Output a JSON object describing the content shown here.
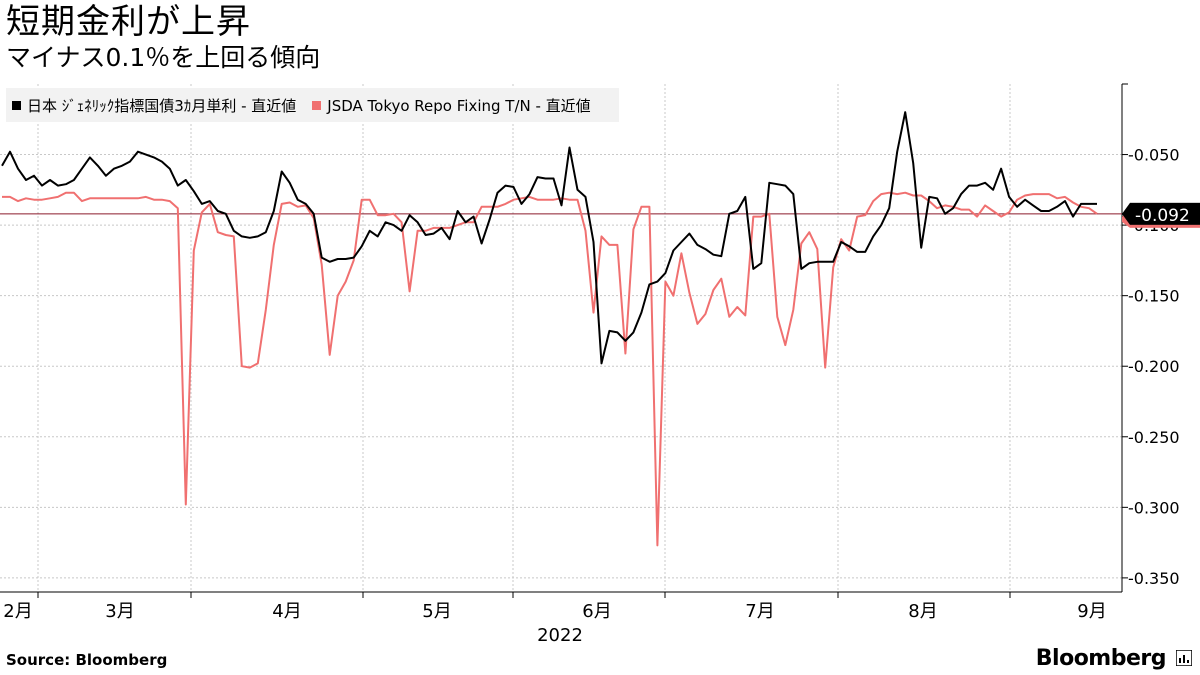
{
  "header": {
    "title": "短期金利が上昇",
    "subtitle": "マイナス0.1％を上回る傾向"
  },
  "footer": {
    "source": "Source:  Bloomberg",
    "logo": "Bloomberg"
  },
  "chart_data": {
    "type": "line",
    "title": "短期金利が上昇",
    "subtitle": "マイナス0.1％を上回る傾向",
    "xlabel": "2022",
    "ylabel": "",
    "ylim": [
      -0.36,
      0.0
    ],
    "y_ticks": [
      -0.05,
      -0.1,
      -0.15,
      -0.2,
      -0.25,
      -0.3,
      -0.35
    ],
    "y_tick_labels": [
      "-0.050",
      "-0.100",
      "-0.150",
      "-0.200",
      "-0.250",
      "-0.300",
      "-0.350"
    ],
    "x_tick_labels": [
      "2月",
      "3月",
      "4月",
      "5月",
      "6月",
      "7月",
      "8月",
      "9月"
    ],
    "x_year_label": "2022",
    "last_value_label": "-0.092",
    "reference_line": -0.092,
    "grid": true,
    "legend_position": "top-left",
    "colors": {
      "series1": "#000000",
      "series2": "#f07070",
      "reference": "#8b1a2b"
    },
    "series": [
      {
        "name": "日本 ｼﾞｪﾈﾘｯｸ指標国債3ｶ月単利 - 直近値",
        "values": [
          -0.058,
          -0.048,
          -0.06,
          -0.068,
          -0.065,
          -0.072,
          -0.068,
          -0.072,
          -0.071,
          -0.068,
          -0.06,
          -0.052,
          -0.058,
          -0.065,
          -0.06,
          -0.058,
          -0.055,
          -0.048,
          -0.05,
          -0.052,
          -0.055,
          -0.06,
          -0.072,
          -0.068,
          -0.076,
          -0.085,
          -0.083,
          -0.09,
          -0.092,
          -0.104,
          -0.108,
          -0.109,
          -0.108,
          -0.105,
          -0.09,
          -0.062,
          -0.07,
          -0.082,
          -0.085,
          -0.092,
          -0.123,
          -0.126,
          -0.124,
          -0.124,
          -0.123,
          -0.115,
          -0.104,
          -0.108,
          -0.098,
          -0.1,
          -0.104,
          -0.093,
          -0.098,
          -0.107,
          -0.106,
          -0.102,
          -0.11,
          -0.09,
          -0.098,
          -0.094,
          -0.113,
          -0.096,
          -0.077,
          -0.072,
          -0.073,
          -0.085,
          -0.078,
          -0.066,
          -0.067,
          -0.067,
          -0.086,
          -0.045,
          -0.075,
          -0.08,
          -0.112,
          -0.198,
          -0.175,
          -0.176,
          -0.182,
          -0.176,
          -0.162,
          -0.142,
          -0.14,
          -0.134,
          -0.118,
          -0.112,
          -0.106,
          -0.114,
          -0.117,
          -0.121,
          -0.122,
          -0.092,
          -0.09,
          -0.08,
          -0.131,
          -0.127,
          -0.07,
          -0.071,
          -0.072,
          -0.078,
          -0.131,
          -0.127,
          -0.126,
          -0.126,
          -0.126,
          -0.112,
          -0.115,
          -0.119,
          -0.119,
          -0.108,
          -0.1,
          -0.088,
          -0.048,
          -0.02,
          -0.056,
          -0.116,
          -0.08,
          -0.081,
          -0.092,
          -0.088,
          -0.078,
          -0.072,
          -0.072,
          -0.07,
          -0.075,
          -0.06,
          -0.08,
          -0.087,
          -0.082,
          -0.086,
          -0.09,
          -0.09,
          -0.087,
          -0.083,
          -0.094,
          -0.085,
          -0.085,
          -0.085
        ]
      },
      {
        "name": "JSDA Tokyo Repo Fixing T/N - 直近値",
        "values": [
          -0.08,
          -0.08,
          -0.083,
          -0.081,
          -0.082,
          -0.082,
          -0.081,
          -0.08,
          -0.077,
          -0.077,
          -0.083,
          -0.081,
          -0.081,
          -0.081,
          -0.081,
          -0.081,
          -0.081,
          -0.081,
          -0.08,
          -0.082,
          -0.082,
          -0.083,
          -0.088,
          -0.298,
          -0.118,
          -0.091,
          -0.085,
          -0.105,
          -0.107,
          -0.108,
          -0.2,
          -0.201,
          -0.198,
          -0.16,
          -0.114,
          -0.085,
          -0.084,
          -0.087,
          -0.086,
          -0.095,
          -0.128,
          -0.192,
          -0.15,
          -0.14,
          -0.125,
          -0.082,
          -0.082,
          -0.093,
          -0.093,
          -0.092,
          -0.098,
          -0.147,
          -0.104,
          -0.104,
          -0.102,
          -0.102,
          -0.102,
          -0.1,
          -0.098,
          -0.098,
          -0.087,
          -0.087,
          -0.087,
          -0.085,
          -0.082,
          -0.081,
          -0.08,
          -0.082,
          -0.082,
          -0.082,
          -0.081,
          -0.082,
          -0.082,
          -0.104,
          -0.162,
          -0.108,
          -0.114,
          -0.114,
          -0.191,
          -0.103,
          -0.087,
          -0.087,
          -0.327,
          -0.14,
          -0.15,
          -0.12,
          -0.148,
          -0.17,
          -0.163,
          -0.146,
          -0.138,
          -0.165,
          -0.158,
          -0.164,
          -0.094,
          -0.094,
          -0.092,
          -0.165,
          -0.185,
          -0.16,
          -0.113,
          -0.105,
          -0.117,
          -0.201,
          -0.13,
          -0.11,
          -0.118,
          -0.094,
          -0.093,
          -0.083,
          -0.078,
          -0.077,
          -0.078,
          -0.077,
          -0.079,
          -0.079,
          -0.083,
          -0.088,
          -0.086,
          -0.087,
          -0.089,
          -0.089,
          -0.094,
          -0.086,
          -0.09,
          -0.094,
          -0.091,
          -0.082,
          -0.079,
          -0.078,
          -0.078,
          -0.078,
          -0.081,
          -0.08,
          -0.084,
          -0.087,
          -0.088,
          -0.092
        ]
      }
    ]
  }
}
